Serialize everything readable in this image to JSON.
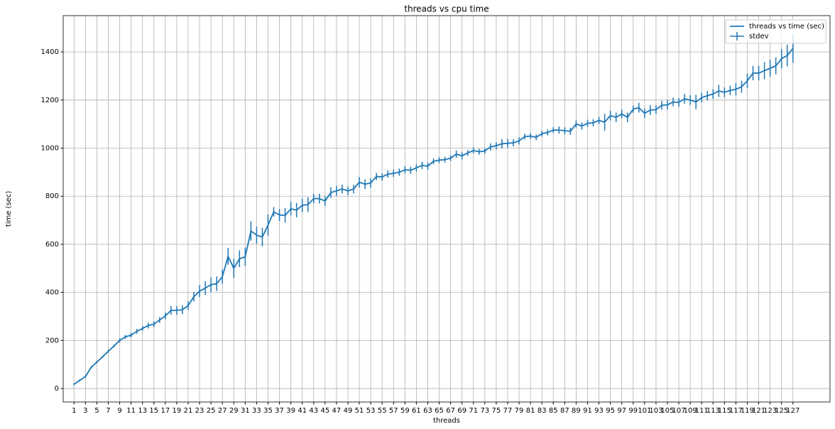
{
  "chart_data": {
    "type": "errorbar",
    "title": "threads vs cpu time",
    "xlabel": "threads",
    "ylabel": "time (sec)",
    "x": [
      1,
      2,
      3,
      4,
      5,
      6,
      7,
      8,
      9,
      10,
      11,
      12,
      13,
      14,
      15,
      16,
      17,
      18,
      19,
      20,
      21,
      22,
      23,
      24,
      25,
      26,
      27,
      28,
      29,
      30,
      31,
      32,
      33,
      34,
      35,
      36,
      37,
      38,
      39,
      40,
      41,
      42,
      43,
      44,
      45,
      46,
      47,
      48,
      49,
      50,
      51,
      52,
      53,
      54,
      55,
      56,
      57,
      58,
      59,
      60,
      61,
      62,
      63,
      64,
      65,
      66,
      67,
      68,
      69,
      70,
      71,
      72,
      73,
      74,
      75,
      76,
      77,
      78,
      79,
      80,
      81,
      82,
      83,
      84,
      85,
      86,
      87,
      88,
      89,
      90,
      91,
      92,
      93,
      94,
      95,
      96,
      97,
      98,
      99,
      100,
      101,
      102,
      103,
      104,
      105,
      106,
      107,
      108,
      109,
      110,
      111,
      112,
      113,
      114,
      115,
      116,
      117,
      118,
      119,
      120,
      121,
      122,
      123,
      124,
      125,
      126,
      127
    ],
    "series": [
      {
        "name": "threads vs time (sec)",
        "color": "#1f77b4",
        "values": [
          18,
          34,
          50,
          88,
          110,
          132,
          155,
          177,
          200,
          215,
          222,
          238,
          250,
          262,
          268,
          285,
          302,
          325,
          325,
          328,
          345,
          382,
          405,
          418,
          432,
          436,
          465,
          550,
          500,
          540,
          548,
          655,
          638,
          630,
          680,
          735,
          722,
          720,
          748,
          742,
          762,
          765,
          790,
          790,
          780,
          815,
          822,
          830,
          822,
          830,
          858,
          850,
          855,
          882,
          880,
          892,
          895,
          900,
          910,
          908,
          918,
          928,
          925,
          945,
          950,
          952,
          958,
          975,
          968,
          980,
          990,
          985,
          988,
          1005,
          1010,
          1018,
          1020,
          1022,
          1030,
          1048,
          1050,
          1045,
          1060,
          1065,
          1075,
          1075,
          1072,
          1070,
          1100,
          1092,
          1103,
          1105,
          1115,
          1108,
          1135,
          1128,
          1142,
          1128,
          1162,
          1168,
          1145,
          1158,
          1160,
          1178,
          1180,
          1192,
          1190,
          1205,
          1200,
          1192,
          1210,
          1218,
          1225,
          1238,
          1232,
          1240,
          1245,
          1255,
          1280,
          1312,
          1312,
          1322,
          1332,
          1342,
          1372,
          1385,
          1415
        ]
      },
      {
        "name": "stdev",
        "color": "#1f77b4",
        "errors": [
          4,
          4,
          5,
          5,
          5,
          5,
          6,
          6,
          8,
          8,
          10,
          10,
          10,
          12,
          12,
          12,
          14,
          18,
          18,
          18,
          18,
          20,
          25,
          28,
          30,
          30,
          30,
          35,
          40,
          35,
          38,
          40,
          35,
          38,
          45,
          20,
          25,
          30,
          28,
          30,
          28,
          30,
          20,
          20,
          20,
          22,
          20,
          18,
          18,
          18,
          22,
          20,
          20,
          15,
          15,
          15,
          15,
          15,
          15,
          15,
          15,
          15,
          15,
          12,
          12,
          12,
          12,
          15,
          15,
          12,
          12,
          12,
          12,
          15,
          15,
          20,
          18,
          15,
          15,
          12,
          12,
          12,
          12,
          12,
          12,
          15,
          15,
          15,
          15,
          15,
          15,
          15,
          15,
          35,
          20,
          20,
          18,
          20,
          15,
          20,
          20,
          20,
          18,
          18,
          20,
          18,
          18,
          20,
          20,
          30,
          20,
          20,
          20,
          25,
          20,
          20,
          25,
          25,
          30,
          30,
          30,
          35,
          35,
          35,
          40,
          45,
          60
        ]
      }
    ],
    "xlim": [
      -0.9,
      133.5
    ],
    "ylim": [
      -56,
      1551
    ],
    "xticks": [
      1,
      3,
      5,
      7,
      9,
      11,
      13,
      15,
      17,
      19,
      21,
      23,
      25,
      27,
      29,
      31,
      33,
      35,
      37,
      39,
      41,
      43,
      45,
      47,
      49,
      51,
      53,
      55,
      57,
      59,
      61,
      63,
      65,
      67,
      69,
      71,
      73,
      75,
      77,
      79,
      81,
      83,
      85,
      87,
      89,
      91,
      93,
      95,
      97,
      99,
      101,
      103,
      105,
      107,
      109,
      111,
      113,
      115,
      117,
      119,
      121,
      123,
      125,
      127
    ],
    "yticks": [
      0,
      200,
      400,
      600,
      800,
      1000,
      1200,
      1400
    ],
    "grid": true,
    "legend": "upper right"
  }
}
